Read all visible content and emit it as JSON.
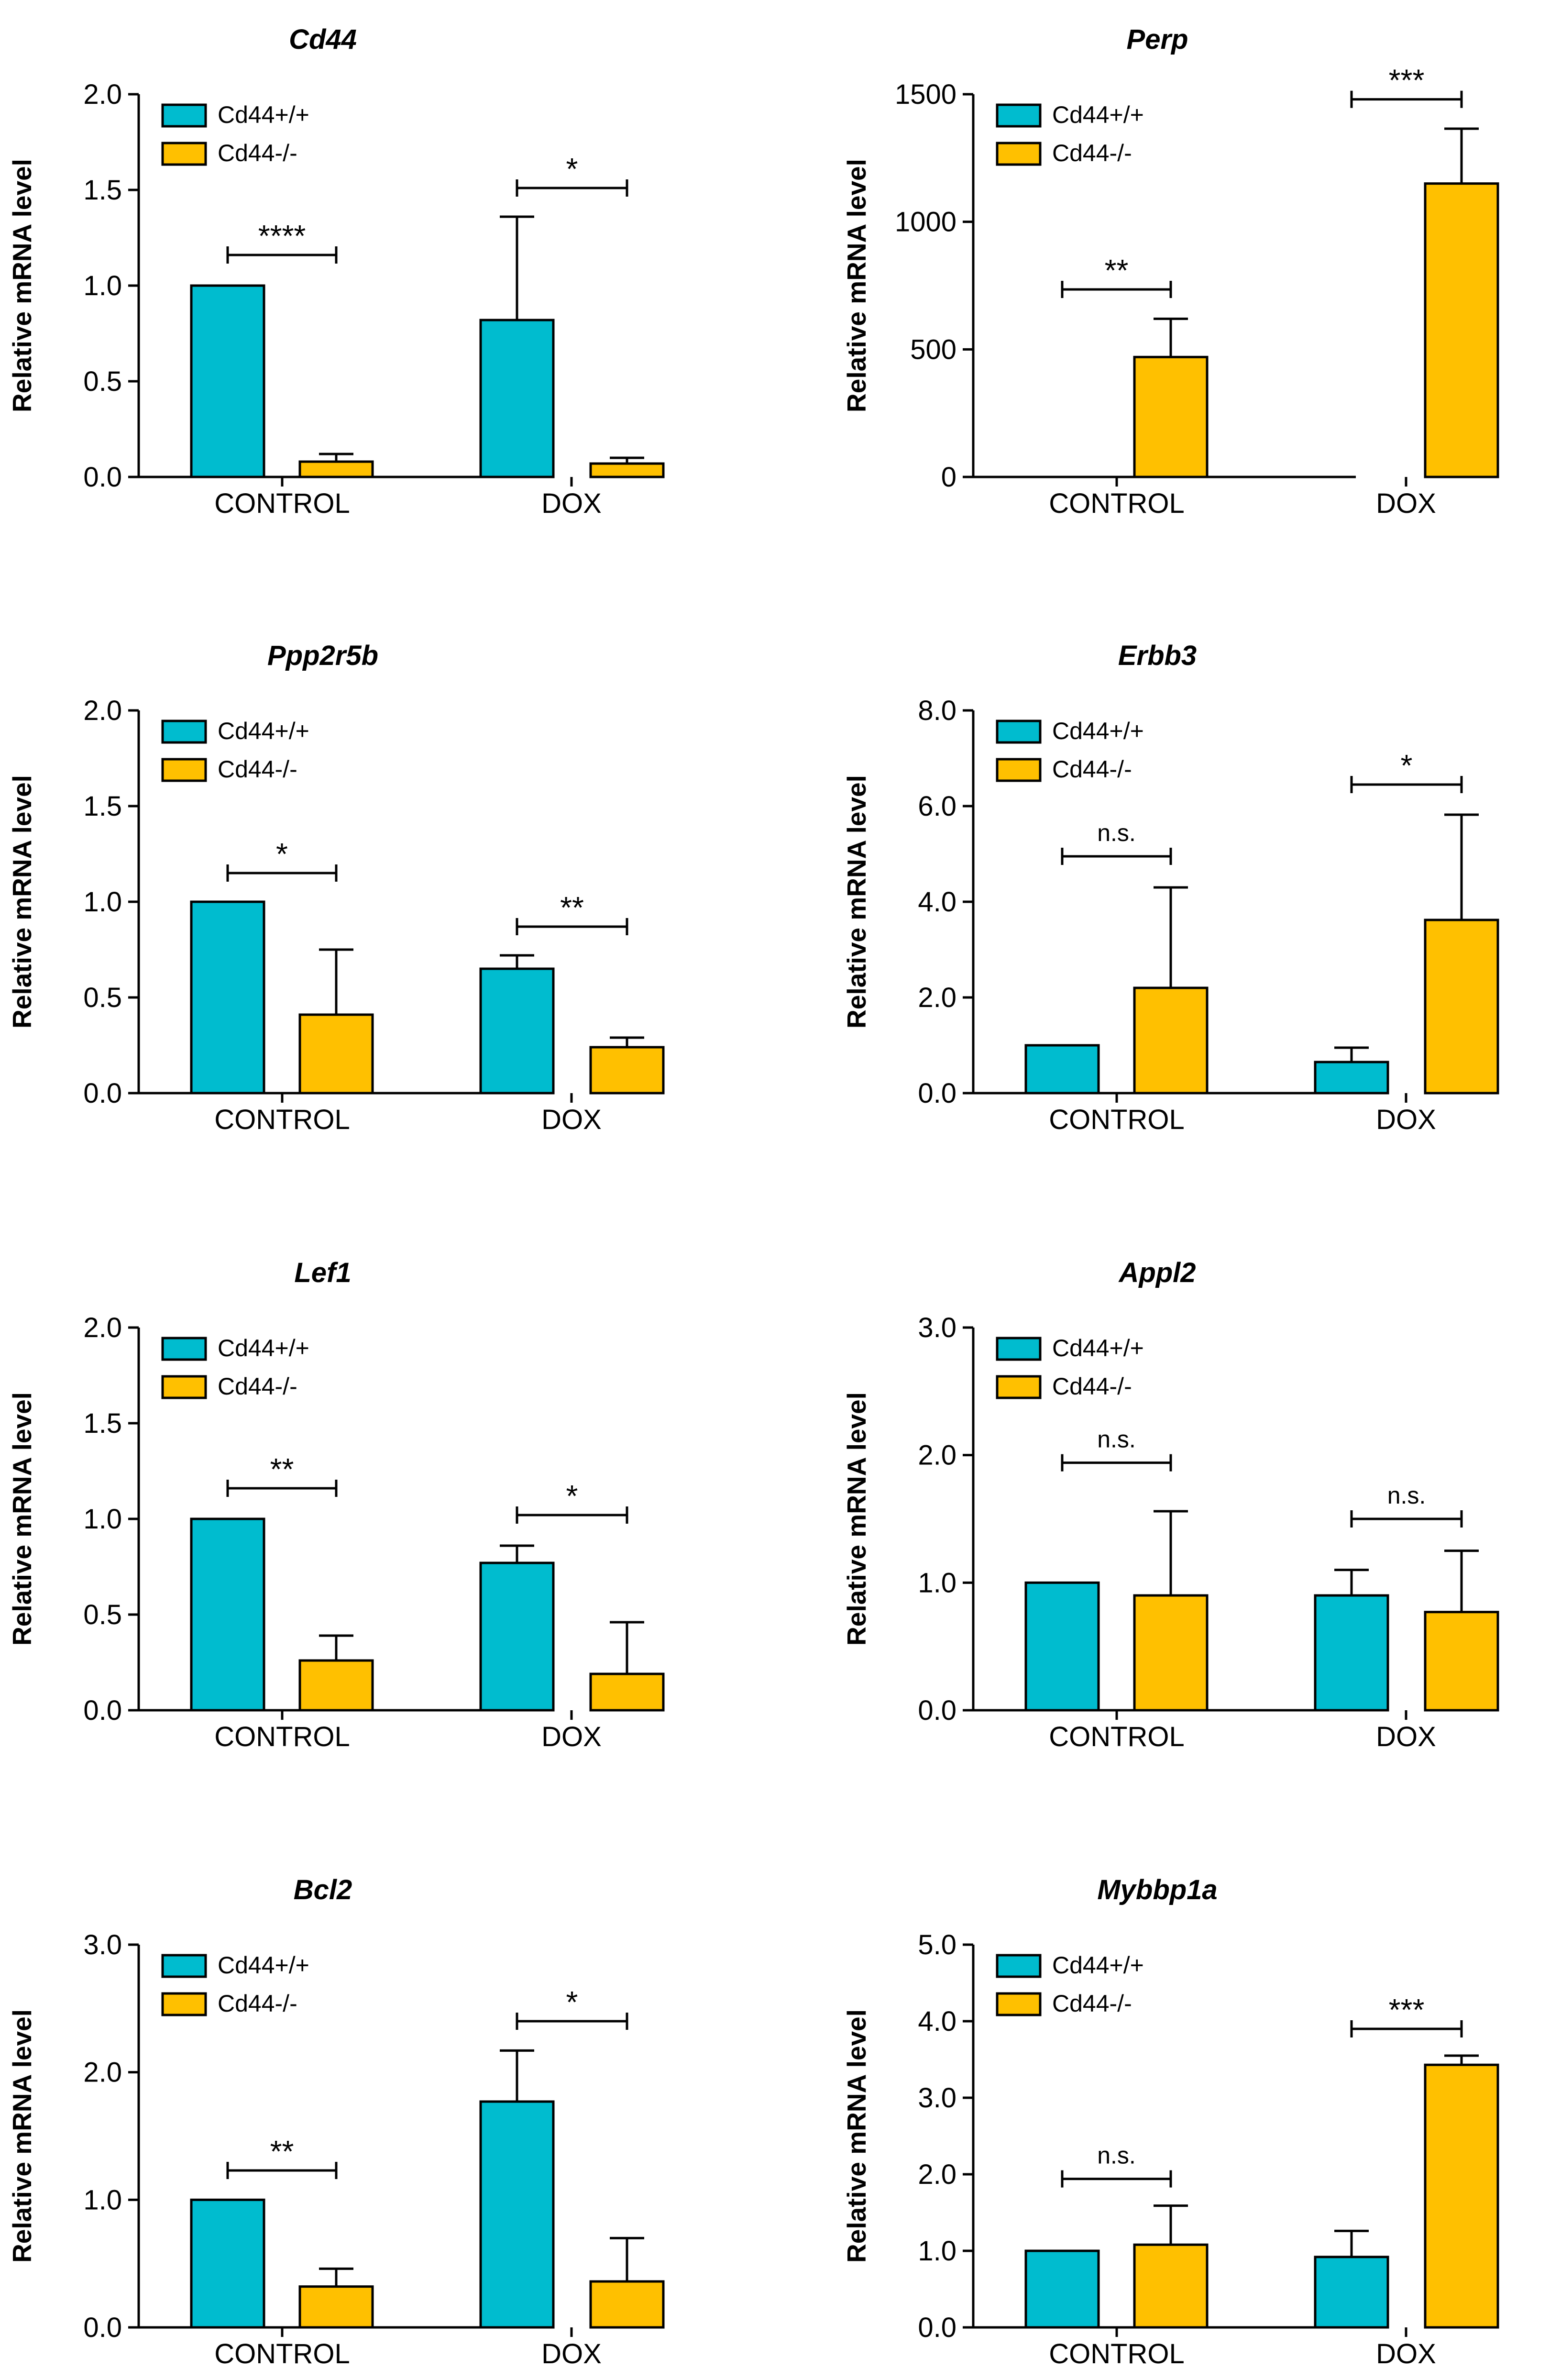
{
  "chart_data": [
    {
      "type": "bar",
      "title": "Cd44",
      "ylabel": "Relative mRNA level",
      "categories": [
        "CONTROL",
        "DOX"
      ],
      "ylim": [
        0,
        2.0
      ],
      "yticks": [
        "0.0",
        "0.5",
        "1.0",
        "1.5",
        "2.0"
      ],
      "series": [
        {
          "name": "Cd44+/+",
          "color": "#00bccf",
          "values": [
            1.0,
            0.82
          ],
          "errors": [
            0.0,
            0.54
          ]
        },
        {
          "name": "Cd44-/-",
          "color": "#ffc000",
          "values": [
            0.08,
            0.07
          ],
          "errors": [
            0.04,
            0.03
          ]
        }
      ],
      "significance": [
        {
          "category": 0,
          "label": "****",
          "y": 1.16
        },
        {
          "category": 1,
          "label": "*",
          "y": 1.51
        }
      ],
      "legend": "top-left"
    },
    {
      "type": "bar",
      "title": "Perp",
      "ylabel": "Relative mRNA level",
      "categories": [
        "CONTROL",
        "DOX"
      ],
      "ylim": [
        0,
        1500
      ],
      "yticks": [
        "0",
        "500",
        "1000",
        "1500"
      ],
      "series": [
        {
          "name": "Cd44+/+",
          "color": "#00bccf",
          "values": [
            0,
            0
          ],
          "errors": [
            0,
            0
          ]
        },
        {
          "name": "Cd44-/-",
          "color": "#ffc000",
          "values": [
            470,
            1150
          ],
          "errors": [
            150,
            215
          ]
        }
      ],
      "significance": [
        {
          "category": 0,
          "label": "**",
          "y": 735
        },
        {
          "category": 1,
          "label": "***",
          "y": 1480
        }
      ],
      "legend": "top-left"
    },
    {
      "type": "bar",
      "title": "Ppp2r5b",
      "ylabel": "Relative mRNA level",
      "categories": [
        "CONTROL",
        "DOX"
      ],
      "ylim": [
        0,
        2.0
      ],
      "yticks": [
        "0.0",
        "0.5",
        "1.0",
        "1.5",
        "2.0"
      ],
      "series": [
        {
          "name": "Cd44+/+",
          "color": "#00bccf",
          "values": [
            1.0,
            0.65
          ],
          "errors": [
            0.0,
            0.07
          ]
        },
        {
          "name": "Cd44-/-",
          "color": "#ffc000",
          "values": [
            0.41,
            0.24
          ],
          "errors": [
            0.34,
            0.05
          ]
        }
      ],
      "significance": [
        {
          "category": 0,
          "label": "*",
          "y": 1.15
        },
        {
          "category": 1,
          "label": "**",
          "y": 0.87
        }
      ],
      "legend": "top-left"
    },
    {
      "type": "bar",
      "title": "Erbb3",
      "ylabel": "Relative mRNA level",
      "categories": [
        "CONTROL",
        "DOX"
      ],
      "ylim": [
        0,
        8.0
      ],
      "yticks": [
        "0.0",
        "2.0",
        "4.0",
        "6.0",
        "8.0"
      ],
      "series": [
        {
          "name": "Cd44+/+",
          "color": "#00bccf",
          "values": [
            1.0,
            0.65
          ],
          "errors": [
            0.0,
            0.3
          ]
        },
        {
          "name": "Cd44-/-",
          "color": "#ffc000",
          "values": [
            2.2,
            3.62
          ],
          "errors": [
            2.1,
            2.2
          ]
        }
      ],
      "significance": [
        {
          "category": 0,
          "label": "n.s.",
          "y": 4.95
        },
        {
          "category": 1,
          "label": "*",
          "y": 6.45
        }
      ],
      "legend": "top-left"
    },
    {
      "type": "bar",
      "title": "Lef1",
      "ylabel": "Relative mRNA level",
      "categories": [
        "CONTROL",
        "DOX"
      ],
      "ylim": [
        0,
        2.0
      ],
      "yticks": [
        "0.0",
        "0.5",
        "1.0",
        "1.5",
        "2.0"
      ],
      "series": [
        {
          "name": "Cd44+/+",
          "color": "#00bccf",
          "values": [
            1.0,
            0.77
          ],
          "errors": [
            0.0,
            0.09
          ]
        },
        {
          "name": "Cd44-/-",
          "color": "#ffc000",
          "values": [
            0.26,
            0.19
          ],
          "errors": [
            0.13,
            0.27
          ]
        }
      ],
      "significance": [
        {
          "category": 0,
          "label": "**",
          "y": 1.16
        },
        {
          "category": 1,
          "label": "*",
          "y": 1.02
        }
      ],
      "legend": "top-left"
    },
    {
      "type": "bar",
      "title": "Appl2",
      "ylabel": "Relative mRNA level",
      "categories": [
        "CONTROL",
        "DOX"
      ],
      "ylim": [
        0,
        3.0
      ],
      "yticks": [
        "0.0",
        "1.0",
        "2.0",
        "3.0"
      ],
      "series": [
        {
          "name": "Cd44+/+",
          "color": "#00bccf",
          "values": [
            1.0,
            0.9
          ],
          "errors": [
            0.0,
            0.2
          ]
        },
        {
          "name": "Cd44-/-",
          "color": "#ffc000",
          "values": [
            0.9,
            0.77
          ],
          "errors": [
            0.66,
            0.48
          ]
        }
      ],
      "significance": [
        {
          "category": 0,
          "label": "n.s.",
          "y": 1.94
        },
        {
          "category": 1,
          "label": "n.s.",
          "y": 1.5
        }
      ],
      "legend": "top-left"
    },
    {
      "type": "bar",
      "title": "Bcl2",
      "ylabel": "Relative mRNA level",
      "categories": [
        "CONTROL",
        "DOX"
      ],
      "ylim": [
        0,
        3.0
      ],
      "yticks": [
        "0.0",
        "1.0",
        "2.0",
        "3.0"
      ],
      "series": [
        {
          "name": "Cd44+/+",
          "color": "#00bccf",
          "values": [
            1.0,
            1.77
          ],
          "errors": [
            0.0,
            0.4
          ]
        },
        {
          "name": "Cd44-/-",
          "color": "#ffc000",
          "values": [
            0.32,
            0.36
          ],
          "errors": [
            0.14,
            0.34
          ]
        }
      ],
      "significance": [
        {
          "category": 0,
          "label": "**",
          "y": 1.23
        },
        {
          "category": 1,
          "label": "*",
          "y": 2.4
        }
      ],
      "legend": "top-left"
    },
    {
      "type": "bar",
      "title": "Mybbp1a",
      "ylabel": "Relative mRNA level",
      "categories": [
        "CONTROL",
        "DOX"
      ],
      "ylim": [
        0,
        5.0
      ],
      "yticks": [
        "0.0",
        "1.0",
        "2.0",
        "3.0",
        "4.0",
        "5.0"
      ],
      "series": [
        {
          "name": "Cd44+/+",
          "color": "#00bccf",
          "values": [
            1.0,
            0.92
          ],
          "errors": [
            0.0,
            0.34
          ]
        },
        {
          "name": "Cd44-/-",
          "color": "#ffc000",
          "values": [
            1.08,
            3.43
          ],
          "errors": [
            0.51,
            0.12
          ]
        }
      ],
      "significance": [
        {
          "category": 0,
          "label": "n.s.",
          "y": 1.94
        },
        {
          "category": 1,
          "label": "***",
          "y": 3.9
        }
      ],
      "legend": "top-left"
    }
  ]
}
